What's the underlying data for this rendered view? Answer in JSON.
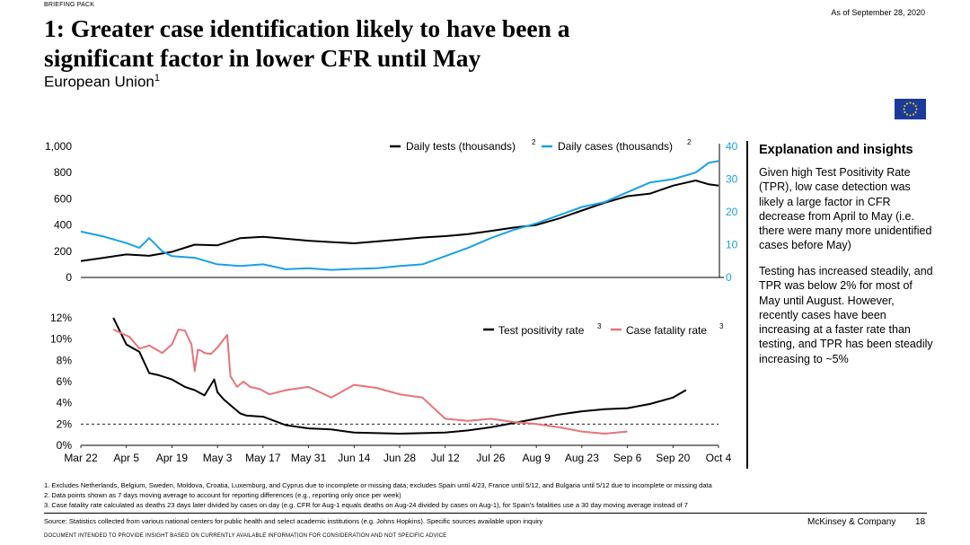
{
  "header": {
    "briefing_pack": "BRIEFING PACK",
    "as_of": "As of September 28, 2020",
    "title_line1": "1: Greater case identification likely to have been a",
    "title_line2": "significant factor in lower CFR until May",
    "subtitle": "European Union",
    "subtitle_sup": "1"
  },
  "flag": {
    "icon": "eu-flag-icon",
    "color": "#1c3a9a",
    "star_color": "#ffdd00"
  },
  "colors": {
    "black": "#000000",
    "blue": "#1aa0e6",
    "red": "#e8737a"
  },
  "chart_data": [
    {
      "type": "line",
      "title": "Daily tests and daily cases",
      "legend": [
        {
          "name": "Daily tests (thousands)",
          "sup": "2",
          "axis": "left",
          "color": "#000000"
        },
        {
          "name": "Daily cases (thousands)",
          "sup": "2",
          "axis": "right",
          "color": "#1aa0e6"
        }
      ],
      "yleft_ticks": [
        "1,000",
        "800",
        "600",
        "400",
        "200",
        "0"
      ],
      "yright_ticks": [
        "40",
        "30",
        "20",
        "10",
        "0"
      ],
      "yleft_lim": [
        0,
        1000
      ],
      "yright_lim": [
        0,
        40
      ],
      "x_day_lim": [
        0,
        196
      ],
      "series": [
        {
          "name": "Daily tests (thousands)",
          "axis": "left",
          "x": [
            0,
            7,
            14,
            21,
            28,
            35,
            42,
            49,
            56,
            63,
            70,
            77,
            84,
            91,
            98,
            105,
            112,
            119,
            126,
            133,
            140,
            147,
            154,
            161,
            168,
            175,
            182,
            189,
            193,
            196
          ],
          "y": [
            125,
            150,
            175,
            165,
            195,
            250,
            245,
            300,
            310,
            295,
            280,
            270,
            260,
            275,
            290,
            305,
            315,
            330,
            355,
            380,
            400,
            450,
            510,
            570,
            620,
            640,
            700,
            740,
            710,
            700
          ]
        },
        {
          "name": "Daily cases (thousands)",
          "axis": "right",
          "x": [
            0,
            7,
            14,
            18,
            21,
            25,
            28,
            35,
            42,
            49,
            56,
            63,
            70,
            77,
            84,
            91,
            98,
            105,
            112,
            119,
            126,
            133,
            140,
            147,
            154,
            161,
            168,
            175,
            182,
            189,
            193,
            196
          ],
          "y": [
            14,
            12.5,
            10.5,
            9,
            12,
            8,
            6.5,
            6,
            4,
            3.5,
            4,
            2.5,
            2.8,
            2.3,
            2.6,
            2.8,
            3.5,
            4,
            6.5,
            9,
            12,
            14.5,
            16.5,
            19,
            21.5,
            23,
            26,
            29,
            30,
            32,
            35,
            35.5
          ]
        }
      ]
    },
    {
      "type": "line",
      "title": "Test positivity rate and case fatality rate",
      "legend": [
        {
          "name": "Test positivity rate",
          "sup": "3",
          "color": "#000000"
        },
        {
          "name": "Case fatality rate",
          "sup": "3",
          "color": "#e8737a"
        }
      ],
      "y_ticks": [
        "12%",
        "10%",
        "8%",
        "6%",
        "4%",
        "2%",
        "0%"
      ],
      "ylim": [
        0,
        12
      ],
      "x_day_lim": [
        0,
        196
      ],
      "reference_line": {
        "value": 2,
        "style": "dashed"
      },
      "x_ticks": [
        "Mar 22",
        "Apr 5",
        "Apr 19",
        "May 3",
        "May 17",
        "May 31",
        "Jun 14",
        "Jun 28",
        "Jul 12",
        "Jul 26",
        "Aug 9",
        "Aug 23",
        "Sep 6",
        "Sep 20",
        "Oct 4"
      ],
      "series": [
        {
          "name": "Test positivity rate",
          "x": [
            10,
            14,
            18,
            21,
            24,
            28,
            32,
            35,
            38,
            41,
            42,
            44,
            49,
            51,
            56,
            63,
            70,
            77,
            84,
            98,
            112,
            119,
            126,
            133,
            140,
            147,
            154,
            161,
            168,
            175,
            182,
            186
          ],
          "y": [
            12,
            9.5,
            8.8,
            6.8,
            6.6,
            6.2,
            5.5,
            5.2,
            4.7,
            6.2,
            5,
            4.3,
            3,
            2.8,
            2.7,
            1.9,
            1.6,
            1.5,
            1.2,
            1.1,
            1.2,
            1.4,
            1.7,
            2.1,
            2.5,
            2.9,
            3.2,
            3.4,
            3.5,
            3.9,
            4.5,
            5.2
          ]
        },
        {
          "name": "Case fatality rate",
          "x": [
            10,
            15,
            18,
            21,
            25,
            28,
            30,
            32,
            34,
            35,
            36,
            37,
            38,
            40,
            42,
            45,
            46,
            48,
            50,
            52,
            55,
            58,
            63,
            70,
            77,
            84,
            91,
            98,
            105,
            112,
            119,
            126,
            133,
            140,
            147,
            154,
            161,
            168
          ],
          "y": [
            10.9,
            10.2,
            9.1,
            9.4,
            8.7,
            9.5,
            10.9,
            10.8,
            9.5,
            7,
            9,
            8.9,
            8.7,
            8.6,
            9.2,
            10.4,
            6.5,
            5.5,
            6,
            5.5,
            5.3,
            4.8,
            5.2,
            5.5,
            4.5,
            5.7,
            5.4,
            4.8,
            4.5,
            2.5,
            2.3,
            2.5,
            2.2,
            2.0,
            1.7,
            1.3,
            1.1,
            1.3
          ]
        }
      ]
    }
  ],
  "insights": {
    "heading": "Explanation and insights",
    "paragraph1": "Given high Test Positivity Rate (TPR), low case detection was likely a large factor in CFR decrease from April to May (i.e. there were many more unidentified cases before May)",
    "paragraph2": "Testing has increased steadily, and TPR was below 2% for most of May until August. However, recently cases have been increasing at a faster rate than testing, and TPR has been steadily increasing to ~5%"
  },
  "footnotes": [
    "1. Excludes Netherlands, Belgium, Sweden, Moldova, Croatia, Luxemburg, and Cyprus due to incomplete or missing data; excludes Spain until 4/23, France until 5/12,  and Bulgaria  until 5/12 due to incomplete or missing data",
    "2. Data points shown as 7 days moving average to account for reporting differences (e.g., reporting only once per week)",
    "3. Case fatality rate calculated as deaths 23 days later divided by cases on day (e.g. CFR for Aug-1 equals deaths on Aug-24 divided by cases on Aug-1), for Spain’s fatalities use a 30 day moving average instead of 7"
  ],
  "footer": {
    "source": "Source: Statistics collected from various national centers for public health and select academic institutions (e.g. Johns Hopkins). Specific sources available upon inquiry",
    "company": "McKinsey & Company",
    "page": "18",
    "disclaimer": "DOCUMENT INTENDED TO PROVIDE INSIGHT BASED ON CURRENTLY AVAILABLE INFORMATION FOR CONSIDERATION AND NOT SPECIFIC ADVICE"
  }
}
